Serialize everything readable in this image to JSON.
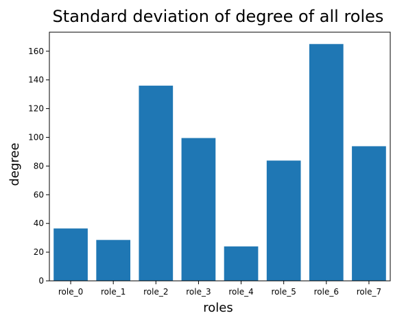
{
  "chart_data": {
    "type": "bar",
    "title": "Standard deviation of degree of all roles",
    "xlabel": "roles",
    "ylabel": "degree",
    "categories": [
      "role_0",
      "role_1",
      "role_2",
      "role_3",
      "role_4",
      "role_5",
      "role_6",
      "role_7"
    ],
    "values": [
      36.5,
      28.5,
      136.0,
      99.5,
      24.0,
      83.8,
      165.0,
      93.8
    ],
    "ylim": [
      0,
      173.25
    ],
    "yticks": [
      0,
      20,
      40,
      60,
      80,
      100,
      120,
      140,
      160
    ],
    "grid": false,
    "legend": "none",
    "bar_color": "#1f77b4"
  }
}
